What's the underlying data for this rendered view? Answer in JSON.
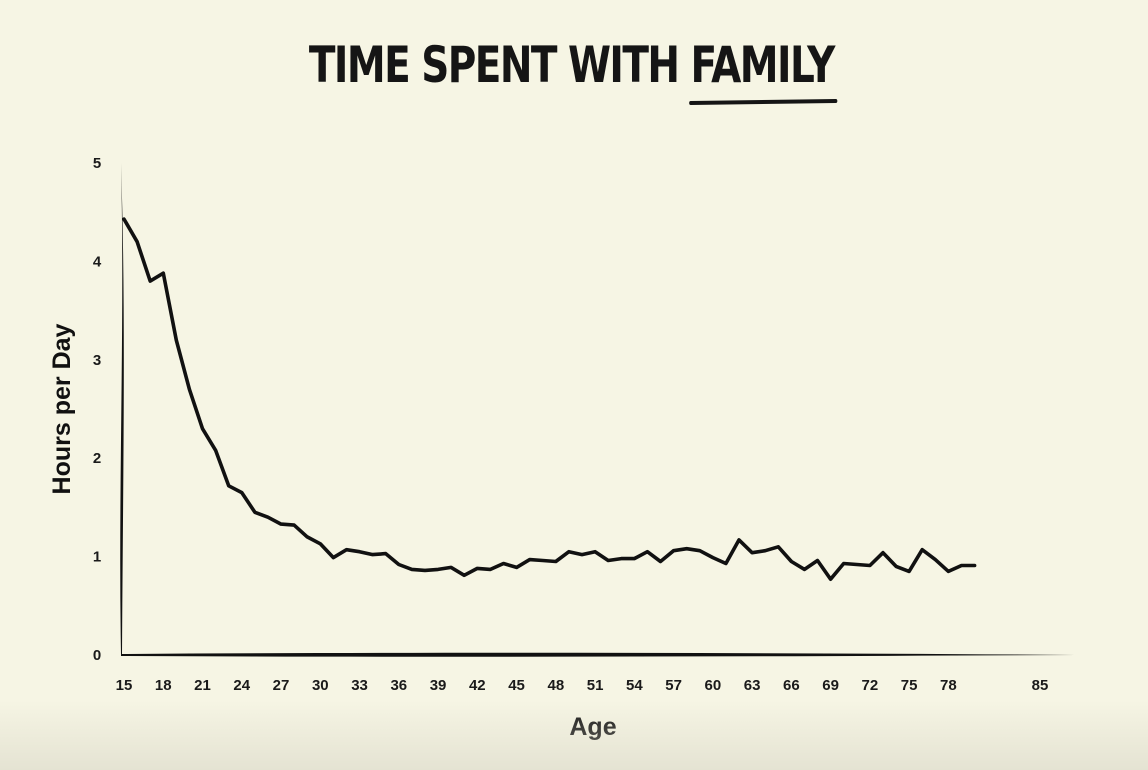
{
  "title": {
    "prefix": "TIME SPENT WITH ",
    "accent": "FAMILY"
  },
  "colors": {
    "background": "#f6f5e4",
    "ink": "#111111"
  },
  "chart_data": {
    "type": "line",
    "title": "TIME SPENT WITH FAMILY",
    "xlabel": "Age",
    "ylabel": "Hours per Day",
    "xlim": [
      15,
      85
    ],
    "ylim": [
      0,
      5
    ],
    "xticks": [
      15,
      18,
      21,
      24,
      27,
      30,
      33,
      36,
      39,
      42,
      45,
      48,
      51,
      54,
      57,
      60,
      63,
      66,
      69,
      72,
      75,
      78,
      85
    ],
    "yticks": [
      0,
      1,
      2,
      3,
      4,
      5
    ],
    "grid": false,
    "legend": "none",
    "series": [
      {
        "x": [
          15,
          16,
          17,
          18,
          19,
          20,
          21,
          22,
          23,
          24,
          25,
          26,
          27,
          28,
          29,
          30,
          31,
          32,
          33,
          34,
          35,
          36,
          37,
          38,
          39,
          40,
          41,
          42,
          43,
          44,
          45,
          46,
          47,
          48,
          49,
          50,
          51,
          52,
          53,
          54,
          55,
          56,
          57,
          58,
          59,
          60,
          61,
          62,
          63,
          64,
          65,
          66,
          67,
          68,
          69,
          70,
          71,
          72,
          73,
          74,
          75,
          76,
          77,
          78,
          79,
          80
        ],
        "values": [
          4.43,
          4.2,
          3.8,
          3.88,
          3.2,
          2.7,
          2.3,
          2.08,
          1.72,
          1.65,
          1.45,
          1.4,
          1.33,
          1.32,
          1.2,
          1.13,
          0.99,
          1.07,
          1.05,
          1.02,
          1.03,
          0.92,
          0.87,
          0.86,
          0.87,
          0.89,
          0.81,
          0.88,
          0.87,
          0.93,
          0.89,
          0.97,
          0.96,
          0.95,
          1.05,
          1.02,
          1.05,
          0.96,
          0.98,
          0.98,
          1.05,
          0.95,
          1.06,
          1.08,
          1.06,
          0.99,
          0.93,
          1.17,
          1.04,
          1.06,
          1.1,
          0.95,
          0.87,
          0.96,
          0.77,
          0.93,
          0.92,
          0.91,
          1.04,
          0.9,
          0.85,
          1.07,
          0.97,
          0.85,
          0.91,
          0.91
        ]
      }
    ]
  }
}
